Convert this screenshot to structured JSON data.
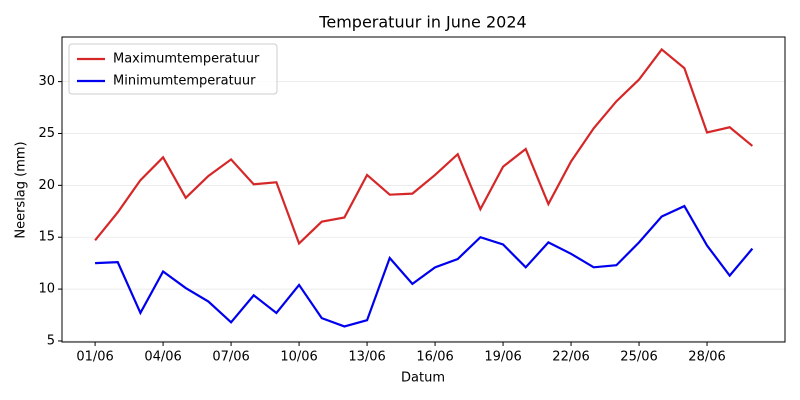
{
  "chart_data": {
    "type": "line",
    "title": "Temperatuur in June 2024",
    "xlabel": "Datum",
    "ylabel": "Neerslag (mm)",
    "categories": [
      "01/06",
      null,
      null,
      "04/06",
      null,
      null,
      "07/06",
      null,
      null,
      "10/06",
      null,
      null,
      "13/06",
      null,
      null,
      "16/06",
      null,
      null,
      "19/06",
      null,
      null,
      "22/06",
      null,
      null,
      "25/06",
      null,
      null,
      "28/06",
      null,
      null
    ],
    "series": [
      {
        "name": "Maximumtemperatuur",
        "color": "#d62728",
        "values": [
          14.7,
          17.4,
          20.5,
          22.7,
          18.8,
          20.9,
          22.5,
          20.1,
          20.3,
          14.4,
          16.5,
          16.9,
          21.0,
          19.1,
          19.2,
          21.0,
          23.0,
          17.7,
          21.8,
          23.5,
          18.2,
          22.3,
          25.5,
          28.1,
          30.2,
          33.1,
          31.3,
          25.1,
          25.6,
          23.8
        ]
      },
      {
        "name": "Minimumtemperatuur",
        "color": "#0000ee",
        "values": [
          12.5,
          12.6,
          7.7,
          11.7,
          10.1,
          8.8,
          6.8,
          9.4,
          7.7,
          10.4,
          7.2,
          6.4,
          7.0,
          13.0,
          10.5,
          12.1,
          12.9,
          15.0,
          14.3,
          12.1,
          14.5,
          13.4,
          12.1,
          12.3,
          14.5,
          17.0,
          18.0,
          14.2,
          11.3,
          13.9
        ]
      }
    ],
    "ylim": [
      4.9,
      34.3
    ],
    "yticks": [
      5,
      10,
      15,
      20,
      25,
      30
    ],
    "grid": true,
    "legend": "upper left"
  }
}
